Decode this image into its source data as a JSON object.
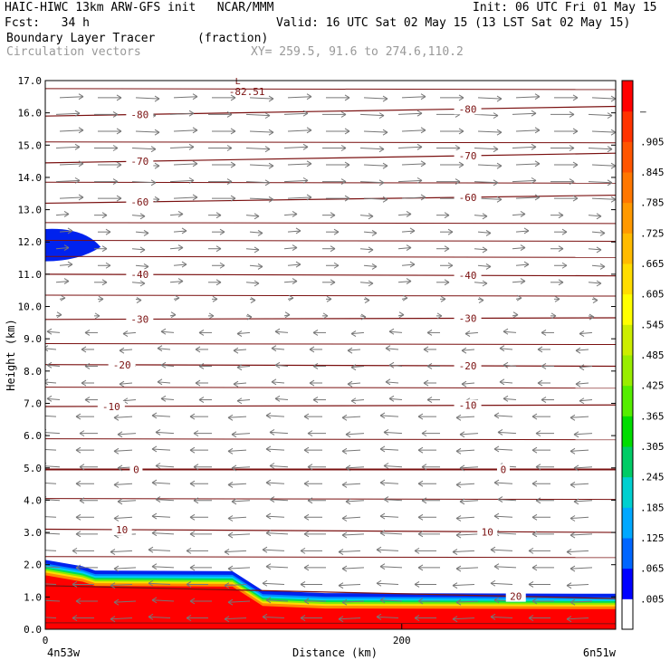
{
  "header": {
    "title_left": "HAIC-HIWC 13km ARW-GFS init   NCAR/MMM",
    "init": "Init: 06 UTC Fri 01 May 15",
    "fcst": "Fcst:   34 h",
    "valid": "Valid: 16 UTC Sat 02 May 15 (13 LST Sat 02 May 15)",
    "field": "Boundary Layer Tracer",
    "field_units": "(fraction)",
    "vectors": "Circulation vectors",
    "xy": "XY= 259.5, 91.6 to 274.6,110.2"
  },
  "colors": {
    "contour": "#7a1010",
    "vector": "#777777",
    "tracer_red": "#ff0000",
    "tracer_blue": "#0033ee"
  },
  "chart_data": {
    "type": "heatmap",
    "xlabel": "Distance (km)",
    "ylabel": "Height (km)",
    "xlim": [
      0,
      320
    ],
    "ylim": [
      0,
      17
    ],
    "x_ticks": [
      {
        "v": 0,
        "label": "0"
      },
      {
        "v": 200,
        "label": "200"
      }
    ],
    "x_end_labels": {
      "left": "4n53w",
      "right": "6n51w"
    },
    "y_ticks": [
      "0.0",
      "1.0",
      "2.0",
      "3.0",
      "4.0",
      "5.0",
      "6.0",
      "7.0",
      "8.0",
      "9.0",
      "10.0",
      "11.0",
      "12.0",
      "13.0",
      "14.0",
      "15.0",
      "16.0",
      "17.0"
    ],
    "colorbar": {
      "labels": [
        ".005",
        ".065",
        ".125",
        ".185",
        ".245",
        ".305",
        ".365",
        ".425",
        ".485",
        ".545",
        ".605",
        ".665",
        ".725",
        ".785",
        ".845",
        ".905",
        "–"
      ],
      "colors": [
        "#ffffff",
        "#0000ff",
        "#0066ff",
        "#00a8ff",
        "#00d0d0",
        "#00cc66",
        "#00dd00",
        "#55ee00",
        "#99ee00",
        "#ccee00",
        "#ffff00",
        "#ffdd00",
        "#ffbb00",
        "#ff9900",
        "#ff7700",
        "#ff5500",
        "#ff3300",
        "#ff0000"
      ]
    },
    "low_label": {
      "symbol": "L",
      "value": "-82.51",
      "x": 108,
      "y": 16.55
    },
    "temperature_contours": [
      {
        "level": "-80",
        "y_left": 15.9,
        "y_right": 16.2,
        "labels_x": [
          53,
          237
        ]
      },
      {
        "level": "-70",
        "y_left": 14.45,
        "y_right": 14.75,
        "labels_x": [
          53,
          237
        ]
      },
      {
        "level": "-60",
        "y_left": 13.2,
        "y_right": 13.45,
        "labels_x": [
          53,
          237
        ]
      },
      {
        "level": "-40",
        "y_left": 11.0,
        "y_right": 10.95,
        "labels_x": [
          53,
          237
        ]
      },
      {
        "level": "-30",
        "y_left": 9.6,
        "y_right": 9.65,
        "labels_x": [
          53,
          237
        ]
      },
      {
        "level": "-20",
        "y_left": 8.2,
        "y_right": 8.15,
        "labels_x": [
          43,
          237
        ]
      },
      {
        "level": "-10",
        "y_left": 6.9,
        "y_right": 6.95,
        "labels_x": [
          37,
          237
        ]
      },
      {
        "level": "0",
        "y_left": 4.95,
        "y_right": 4.95,
        "labels_x": [
          51,
          257
        ]
      },
      {
        "level": "10",
        "y_left": 3.1,
        "y_right": 3.0,
        "labels_x": [
          43,
          248
        ]
      },
      {
        "level": "20",
        "y_left": 1.35,
        "y_right": 0.95,
        "labels_x": [
          264
        ]
      }
    ],
    "unlabeled_contour_heights": [
      16.75,
      15.1,
      13.85,
      12.6,
      12.05,
      11.55,
      10.35,
      8.85,
      7.5,
      5.9,
      4.05,
      2.25,
      0.2
    ],
    "tracer_top_profile": {
      "x": [
        0,
        21,
        28,
        105,
        122,
        157,
        320
      ],
      "height": [
        2.15,
        1.95,
        1.82,
        1.8,
        1.2,
        1.12,
        1.1
      ]
    },
    "tracer_upper_blob": {
      "x_end": 27,
      "y_bottom": 11.4,
      "y_top": 12.4
    }
  }
}
